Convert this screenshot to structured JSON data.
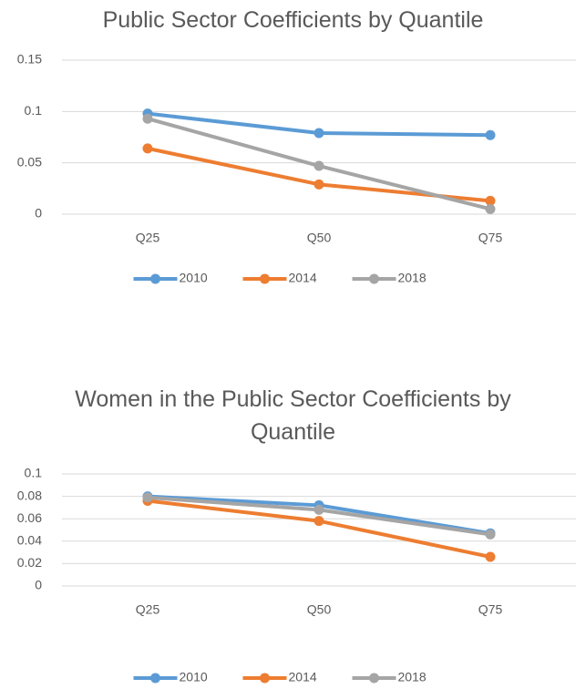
{
  "chart_data": [
    {
      "type": "line",
      "title": "Public Sector Coefficients by Quantile",
      "categories": [
        "Q25",
        "Q50",
        "Q75"
      ],
      "series": [
        {
          "name": "2010",
          "color": "#5b9bd5",
          "values": [
            0.098,
            0.079,
            0.077
          ]
        },
        {
          "name": "2014",
          "color": "#ed7d31",
          "values": [
            0.064,
            0.029,
            0.013
          ]
        },
        {
          "name": "2018",
          "color": "#a5a5a5",
          "values": [
            0.093,
            0.047,
            0.005
          ]
        }
      ],
      "ylim": [
        0,
        0.15
      ],
      "yticks": [
        0,
        0.05,
        0.1,
        0.15
      ],
      "grid": true,
      "legend": "bottom"
    },
    {
      "type": "line",
      "title": "Women in the Public Sector Coefficients by Quantile",
      "categories": [
        "Q25",
        "Q50",
        "Q75"
      ],
      "series": [
        {
          "name": "2010",
          "color": "#5b9bd5",
          "values": [
            0.08,
            0.072,
            0.047
          ]
        },
        {
          "name": "2014",
          "color": "#ed7d31",
          "values": [
            0.076,
            0.058,
            0.026
          ]
        },
        {
          "name": "2018",
          "color": "#a5a5a5",
          "values": [
            0.079,
            0.068,
            0.046
          ]
        }
      ],
      "ylim": [
        0,
        0.1
      ],
      "yticks": [
        0,
        0.02,
        0.04,
        0.06,
        0.08,
        0.1
      ],
      "grid": true,
      "legend": "bottom"
    }
  ]
}
